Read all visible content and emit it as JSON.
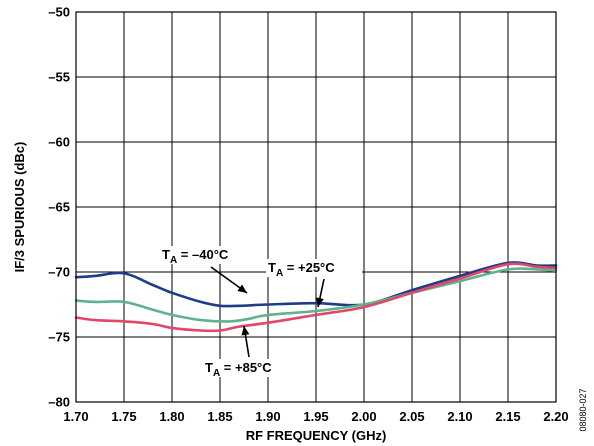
{
  "chart_data": {
    "type": "line",
    "xlabel": "RF FREQUENCY (GHz)",
    "ylabel": "IF/3 SPURIOUS (dBc)",
    "xlim": [
      1.7,
      2.2
    ],
    "ylim": [
      -80,
      -50
    ],
    "x_ticks": [
      "1.70",
      "1.75",
      "1.80",
      "1.85",
      "1.90",
      "1.95",
      "2.00",
      "2.05",
      "2.10",
      "2.15",
      "2.20"
    ],
    "y_ticks": [
      "–50",
      "–55",
      "–60",
      "–65",
      "–70",
      "–75",
      "–80"
    ],
    "grid": true,
    "figure_id": "08080-027",
    "series": [
      {
        "name": "T_A = –40°C",
        "color": "#1f3c88",
        "x": [
          1.7,
          1.72,
          1.75,
          1.78,
          1.8,
          1.83,
          1.85,
          1.87,
          1.9,
          1.95,
          2.0,
          2.05,
          2.1,
          2.15,
          2.18,
          2.2
        ],
        "y": [
          -70.4,
          -70.3,
          -70.1,
          -71.0,
          -71.6,
          -72.3,
          -72.6,
          -72.6,
          -72.5,
          -72.4,
          -72.5,
          -71.4,
          -70.3,
          -69.3,
          -69.5,
          -69.5
        ]
      },
      {
        "name": "T_A = +25°C",
        "color": "#5fb38c",
        "x": [
          1.7,
          1.72,
          1.75,
          1.78,
          1.8,
          1.83,
          1.86,
          1.88,
          1.9,
          1.95,
          2.0,
          2.05,
          2.1,
          2.15,
          2.18,
          2.2
        ],
        "y": [
          -72.2,
          -72.3,
          -72.3,
          -72.9,
          -73.3,
          -73.7,
          -73.8,
          -73.6,
          -73.3,
          -73.0,
          -72.5,
          -71.6,
          -70.7,
          -69.8,
          -69.8,
          -69.9
        ]
      },
      {
        "name": "T_A = +85°C",
        "color": "#e0476a",
        "x": [
          1.7,
          1.72,
          1.75,
          1.78,
          1.8,
          1.83,
          1.85,
          1.87,
          1.9,
          1.95,
          2.0,
          2.05,
          2.1,
          2.15,
          2.18,
          2.2
        ],
        "y": [
          -73.5,
          -73.7,
          -73.8,
          -74.0,
          -74.3,
          -74.5,
          -74.5,
          -74.2,
          -73.9,
          -73.3,
          -72.7,
          -71.6,
          -70.5,
          -69.4,
          -69.6,
          -69.7
        ]
      }
    ],
    "annotations": [
      {
        "text": "T",
        "sub": "A",
        "rest": " = –40°C"
      },
      {
        "text": "T",
        "sub": "A",
        "rest": " = +25°C"
      },
      {
        "text": "T",
        "sub": "A",
        "rest": " = +85°C"
      }
    ]
  }
}
